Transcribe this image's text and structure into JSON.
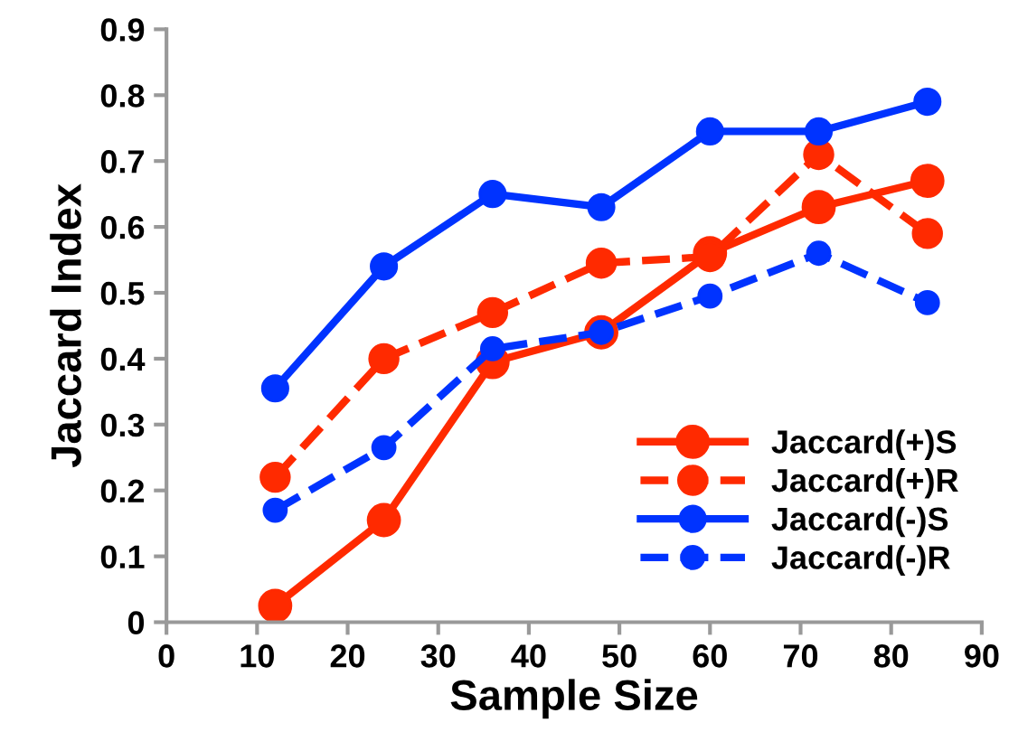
{
  "chart_data": {
    "type": "line",
    "xlabel": "Sample Size",
    "ylabel": "Jaccard Index",
    "x": [
      12,
      24,
      36,
      48,
      60,
      72,
      84
    ],
    "series": [
      {
        "name": "Jaccard(+)S",
        "color": "#ff2a00",
        "line_style": "solid",
        "values": [
          0.025,
          0.155,
          0.395,
          0.44,
          0.56,
          0.63,
          0.67
        ]
      },
      {
        "name": "Jaccard(+)R",
        "color": "#ff2a00",
        "line_style": "dashed",
        "values": [
          0.22,
          0.4,
          0.47,
          0.545,
          0.555,
          0.71,
          0.59
        ]
      },
      {
        "name": "Jaccard(-)S",
        "color": "#0033ff",
        "line_style": "solid",
        "values": [
          0.355,
          0.54,
          0.65,
          0.63,
          0.745,
          0.745,
          0.79
        ]
      },
      {
        "name": "Jaccard(-)R",
        "color": "#0033ff",
        "line_style": "dashed",
        "values": [
          0.17,
          0.265,
          0.415,
          0.44,
          0.495,
          0.56,
          0.485
        ]
      }
    ],
    "marker": "circle",
    "xlim": [
      0,
      90
    ],
    "xticks": [
      0,
      10,
      20,
      30,
      40,
      50,
      60,
      70,
      80,
      90
    ],
    "ylim": [
      0,
      0.9
    ],
    "yticks": [
      0,
      0.1,
      0.2,
      0.3,
      0.4,
      0.5,
      0.6,
      0.7,
      0.8,
      0.9
    ],
    "grid": false,
    "legend": "bottom right"
  }
}
